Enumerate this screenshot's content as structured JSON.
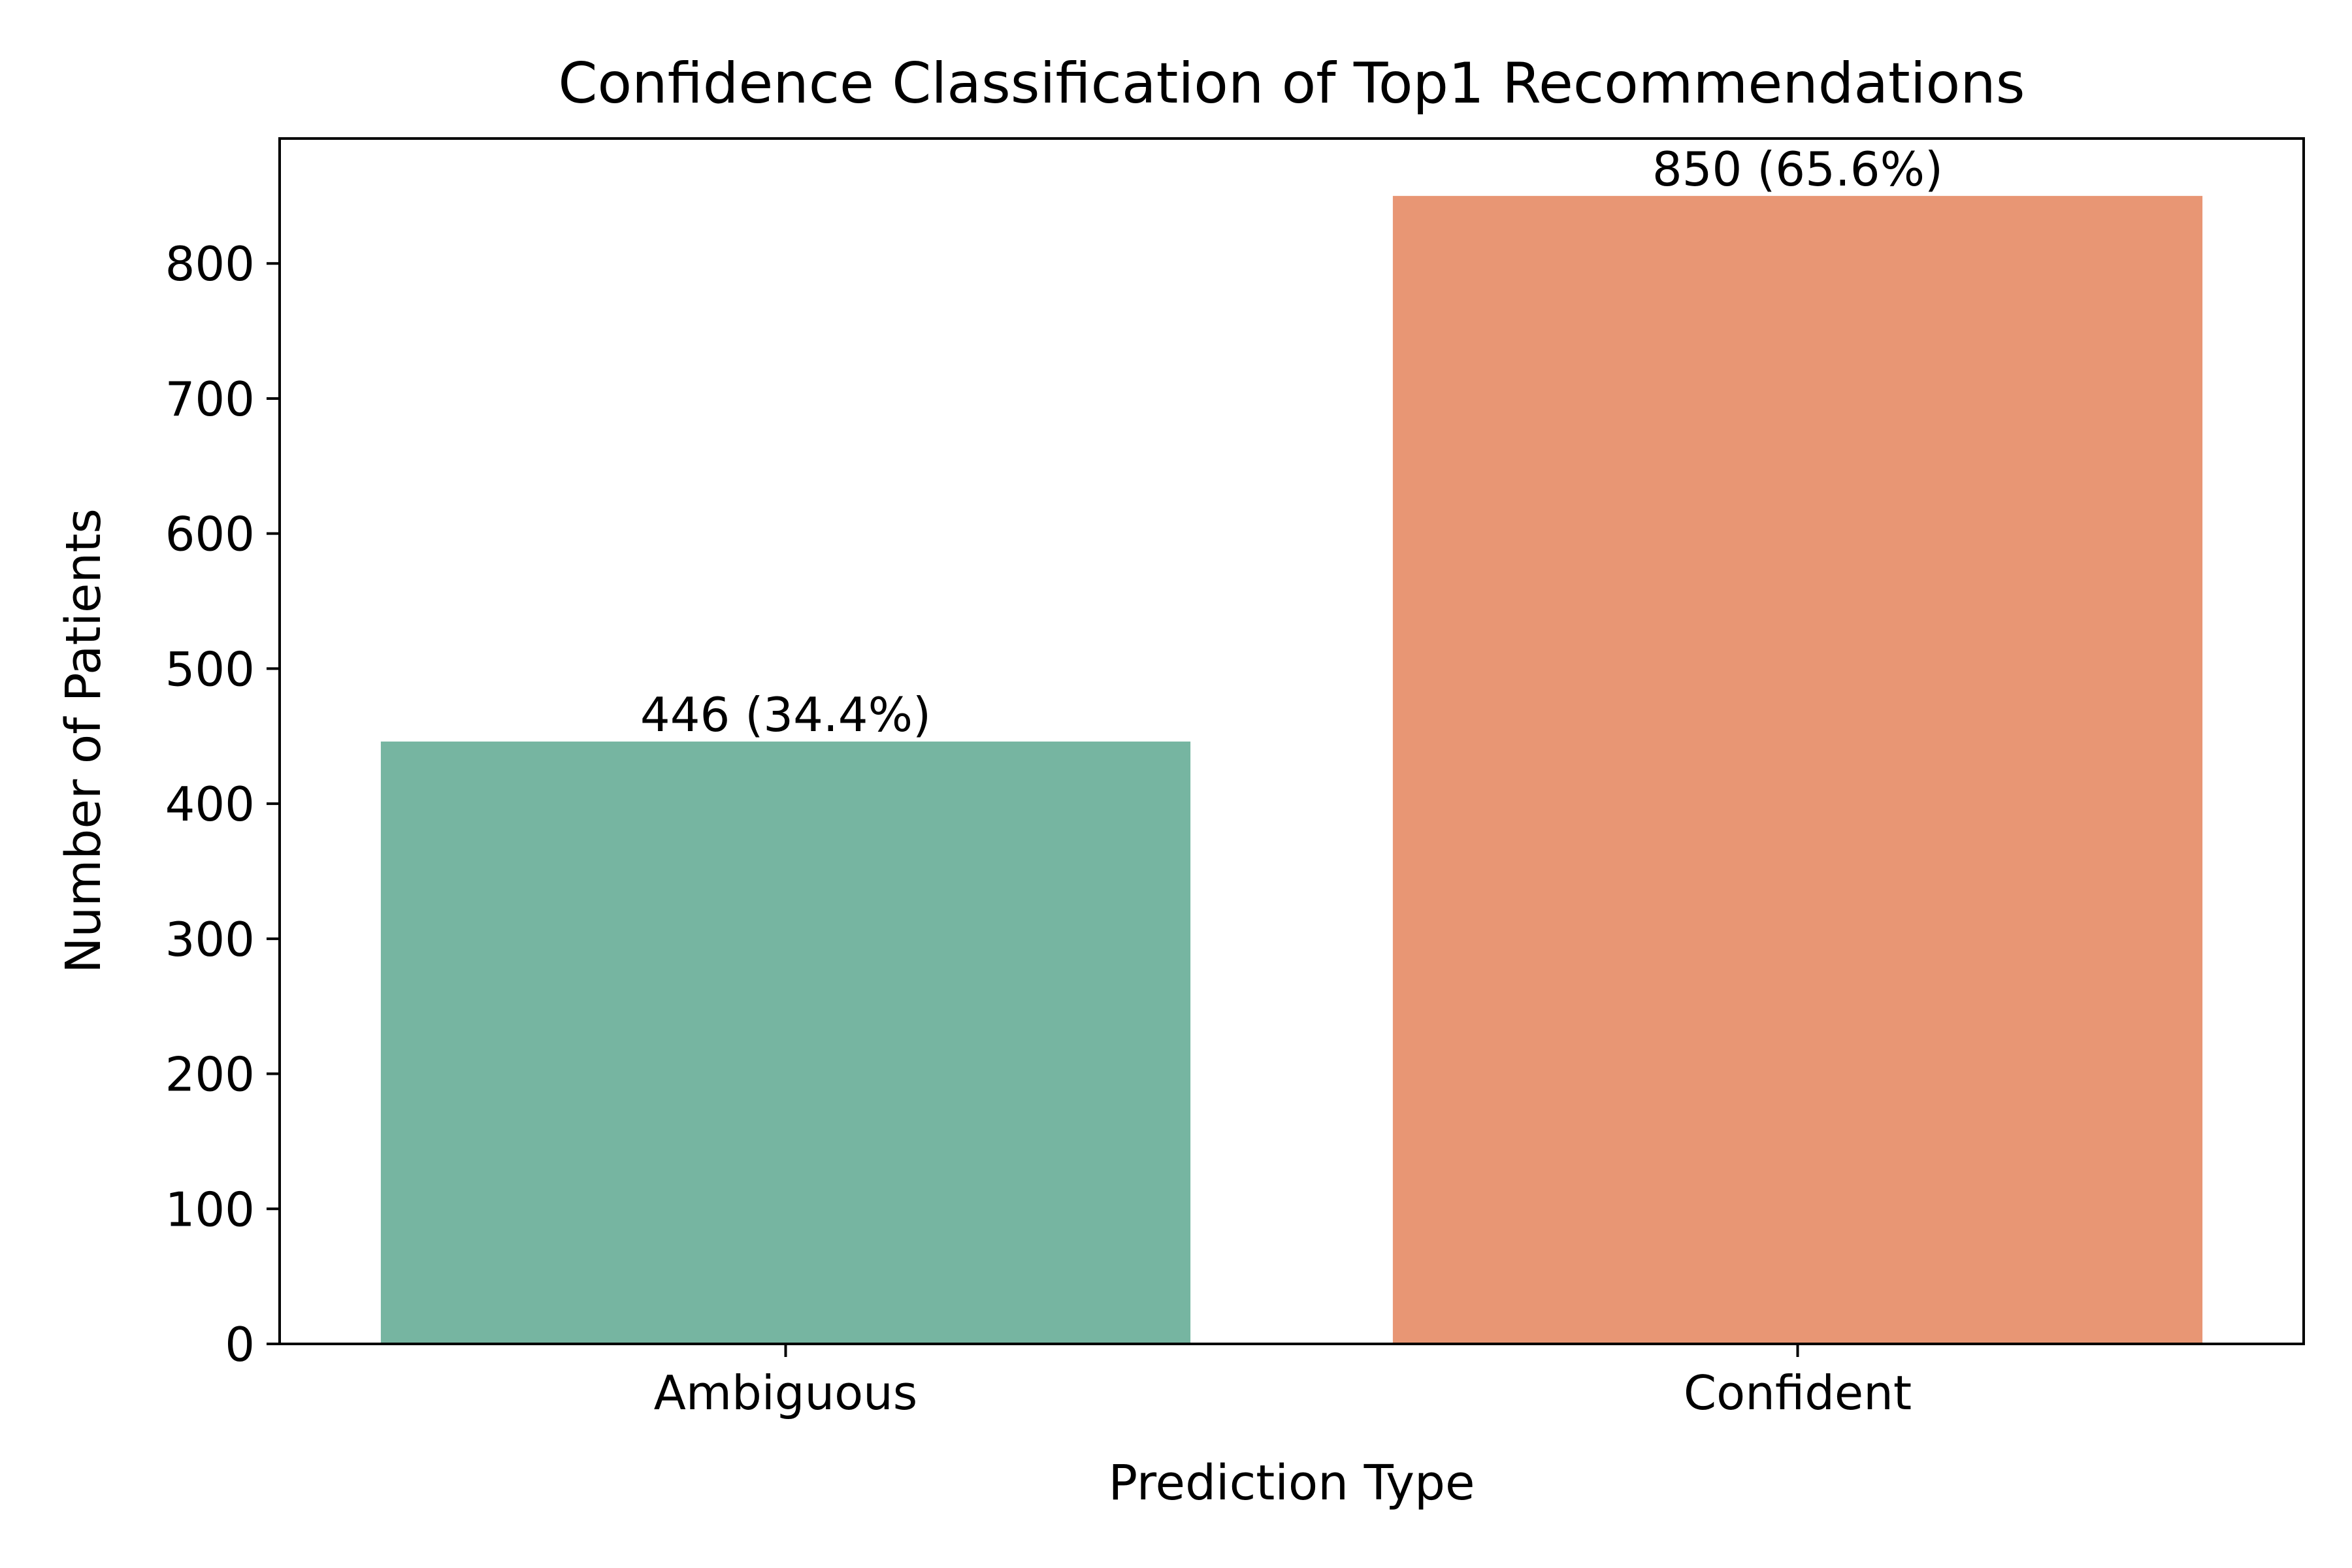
{
  "chart_data": {
    "type": "bar",
    "title": "Confidence Classification of Top1 Recommendations",
    "xlabel": "Prediction Type",
    "ylabel": "Number of Patients",
    "categories": [
      "Ambiguous",
      "Confident"
    ],
    "values": [
      446,
      850
    ],
    "data_labels": [
      "446 (34.4%)",
      "850 (65.6%)"
    ],
    "colors": [
      "#76b5a1",
      "#e89674"
    ],
    "ylim": [
      0,
      892.5
    ],
    "yticks": [
      0,
      100,
      200,
      300,
      400,
      500,
      600,
      700,
      800
    ],
    "ytick_labels": [
      "0",
      "100",
      "200",
      "300",
      "400",
      "500",
      "600",
      "700",
      "800"
    ],
    "grid": false,
    "legend": false
  }
}
